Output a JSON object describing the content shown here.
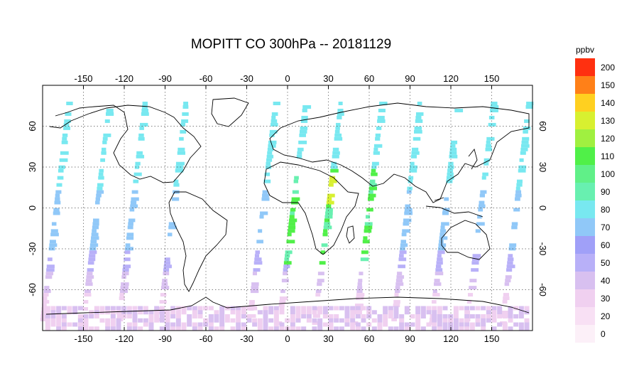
{
  "title": "MOPITT CO 300hPa -- 20181129",
  "map": {
    "lon_ticks": [
      "-150",
      "-120",
      "-90",
      "-60",
      "-30",
      "0",
      "30",
      "60",
      "90",
      "120",
      "150"
    ],
    "lat_ticks": [
      "60",
      "30",
      "0",
      "-30",
      "-60"
    ],
    "lat_values": [
      60,
      30,
      0,
      -30,
      -60
    ],
    "lon_values": [
      -150,
      -120,
      -90,
      -60,
      -30,
      0,
      30,
      60,
      90,
      120,
      150
    ],
    "lon_range": [
      -180,
      180
    ],
    "lat_range": [
      -90,
      90
    ],
    "grid": true
  },
  "colorbar": {
    "unit": "ppbv",
    "levels": [
      "200",
      "150",
      "140",
      "130",
      "120",
      "110",
      "100",
      "90",
      "80",
      "70",
      "60",
      "50",
      "40",
      "30",
      "20",
      "0"
    ],
    "colors": [
      "#ff3010",
      "#ff8018",
      "#ffd020",
      "#d8f030",
      "#a0f040",
      "#50f048",
      "#60f088",
      "#68f0b0",
      "#78e8f0",
      "#90c8f8",
      "#a0a0f8",
      "#b8b0f8",
      "#d8c0f0",
      "#f0d0f0",
      "#f8e0f4",
      "#fcf0f8"
    ]
  }
}
